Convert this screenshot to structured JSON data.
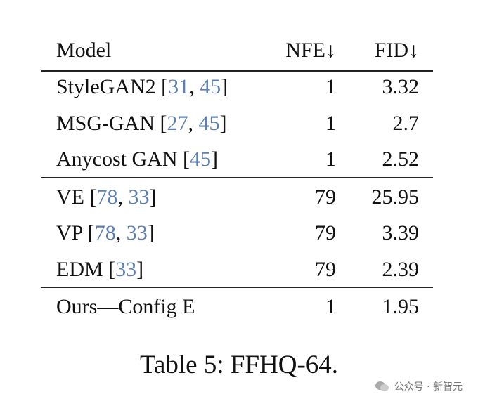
{
  "table": {
    "header": [
      "Model",
      "NFE↓",
      "FID↓"
    ],
    "groups": [
      [
        {
          "model": [
            "StyleGAN2 [",
            {
              "text": "31",
              "color": "#5b7fb5"
            },
            ", ",
            {
              "text": "45",
              "color": "#5b7fb5"
            },
            "]"
          ],
          "nfe": 1,
          "fid": 3.32
        },
        {
          "model": [
            "MSG-GAN [",
            {
              "text": "27",
              "color": "#5b7fb5"
            },
            ", ",
            {
              "text": "45",
              "color": "#5b7fb5"
            },
            "]"
          ],
          "nfe": 1,
          "fid": 2.7
        },
        {
          "model": [
            "Anycost GAN [",
            {
              "text": "45",
              "color": "#5b7fb5"
            },
            "]"
          ],
          "nfe": 1,
          "fid": 2.52
        }
      ],
      [
        {
          "model": [
            "VE [",
            {
              "text": "78",
              "color": "#5b7fb5"
            },
            ", ",
            {
              "text": "33",
              "color": "#5b7fb5"
            },
            "]"
          ],
          "nfe": 79,
          "fid": 25.95
        },
        {
          "model": [
            "VP [",
            {
              "text": "78",
              "color": "#5b7fb5"
            },
            ", ",
            {
              "text": "33",
              "color": "#5b7fb5"
            },
            "]"
          ],
          "nfe": 79,
          "fid": 3.39
        },
        {
          "model": [
            "EDM [",
            {
              "text": "33",
              "color": "#5b7fb5"
            },
            "]"
          ],
          "nfe": 79,
          "fid": 2.39
        }
      ],
      [
        {
          "model": [
            "Ours—Config E"
          ],
          "nfe": 1,
          "fid": 1.95
        }
      ]
    ],
    "caption": "Table 5: FFHQ-64."
  },
  "watermark": "公众号 · 新智元"
}
